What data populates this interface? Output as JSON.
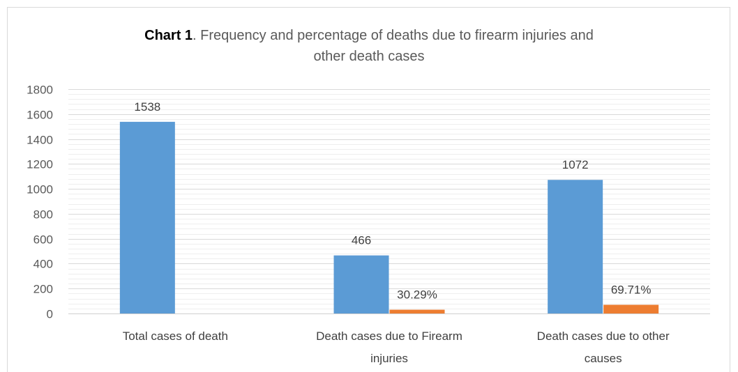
{
  "chart_data": {
    "type": "bar",
    "title": "Chart 1",
    "title_rest": ". Frequency and percentage of deaths due to firearm injuries and",
    "title_line2": "other death cases",
    "categories": [
      [
        "Total cases of death"
      ],
      [
        "Death cases due to Firearm",
        "injuries"
      ],
      [
        "Death cases due to other",
        "causes"
      ]
    ],
    "ylim": [
      0,
      1800
    ],
    "yticks": [
      0,
      200,
      400,
      600,
      800,
      1000,
      1200,
      1400,
      1600,
      1800
    ],
    "minor_grid_step": 40,
    "grid": true,
    "series": [
      {
        "color": "#5b9bd5",
        "values": [
          1538,
          466,
          1072
        ],
        "labels": [
          "1538",
          "466",
          "1072"
        ]
      },
      {
        "color": "#ed7d31",
        "values": [
          null,
          30.29,
          69.71
        ],
        "labels": [
          "",
          "30.29%",
          "69.71%"
        ]
      }
    ]
  }
}
